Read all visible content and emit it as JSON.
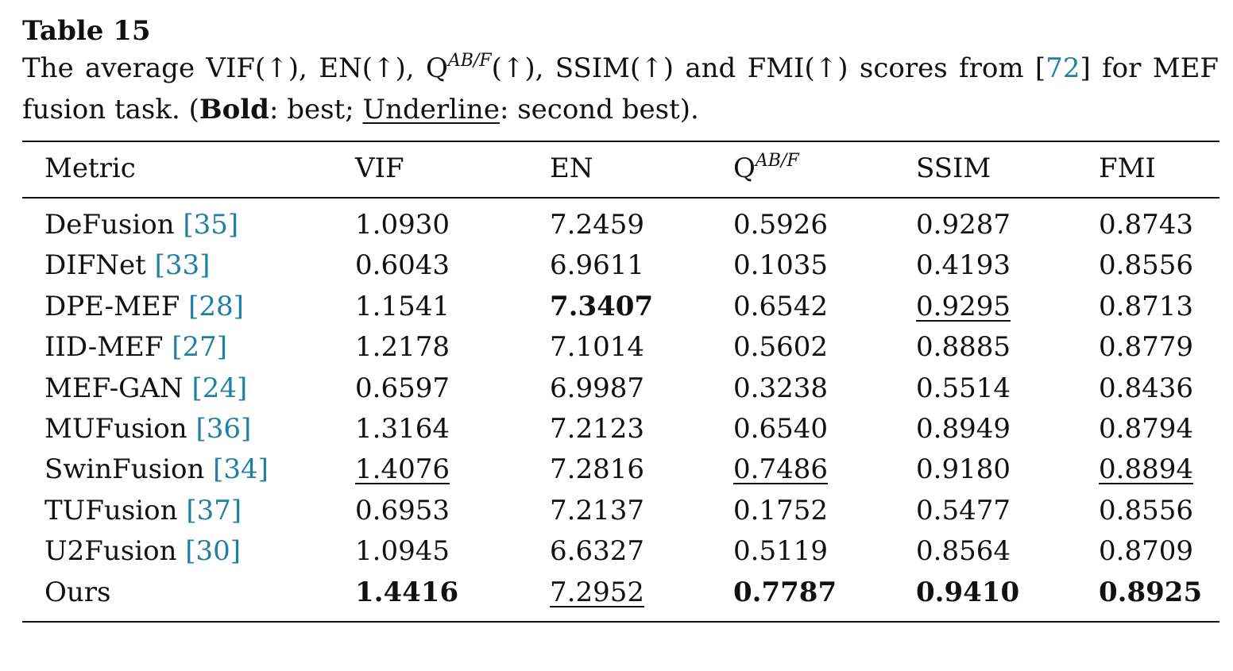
{
  "caption": {
    "label": "Table 15",
    "line1_a": "The average VIF(↑), EN(↑), Q",
    "line1_sup": "AB/F",
    "line1_b": "(↑), SSIM(↑) and FMI(↑) scores from [",
    "line1_ref": "72",
    "line1_c": "] for MEF",
    "line2_a": "fusion task. (",
    "line2_bold": "Bold",
    "line2_b": ": best; ",
    "line2_underline": "Underline",
    "line2_c": ": second best)."
  },
  "table": {
    "headers": {
      "metric": "Metric",
      "vif": "VIF",
      "en": "EN",
      "q_base": "Q",
      "q_sup": "AB/F",
      "ssim": "SSIM",
      "fmi": "FMI"
    },
    "rows": [
      {
        "name": "DeFusion",
        "ref": "[35]",
        "vif": "1.0930",
        "en": "7.2459",
        "q": "0.5926",
        "ssim": "0.9287",
        "fmi": "0.8743"
      },
      {
        "name": "DIFNet",
        "ref": "[33]",
        "vif": "0.6043",
        "en": "6.9611",
        "q": "0.1035",
        "ssim": "0.4193",
        "fmi": "0.8556"
      },
      {
        "name": "DPE-MEF",
        "ref": "[28]",
        "vif": "1.1541",
        "en": "7.3407",
        "q": "0.6542",
        "ssim": "0.9295",
        "fmi": "0.8713"
      },
      {
        "name": "IID-MEF",
        "ref": "[27]",
        "vif": "1.2178",
        "en": "7.1014",
        "q": "0.5602",
        "ssim": "0.8885",
        "fmi": "0.8779"
      },
      {
        "name": "MEF-GAN",
        "ref": "[24]",
        "vif": "0.6597",
        "en": "6.9987",
        "q": "0.3238",
        "ssim": "0.5514",
        "fmi": "0.8436"
      },
      {
        "name": "MUFusion",
        "ref": "[36]",
        "vif": "1.3164",
        "en": "7.2123",
        "q": "0.6540",
        "ssim": "0.8949",
        "fmi": "0.8794"
      },
      {
        "name": "SwinFusion",
        "ref": "[34]",
        "vif": "1.4076",
        "en": "7.2816",
        "q": "0.7486",
        "ssim": "0.9180",
        "fmi": "0.8894"
      },
      {
        "name": "TUFusion",
        "ref": "[37]",
        "vif": "0.6953",
        "en": "7.2137",
        "q": "0.1752",
        "ssim": "0.5477",
        "fmi": "0.8556"
      },
      {
        "name": "U2Fusion",
        "ref": "[30]",
        "vif": "1.0945",
        "en": "6.6327",
        "q": "0.5119",
        "ssim": "0.8564",
        "fmi": "0.8709"
      },
      {
        "name": "Ours",
        "ref": "",
        "vif": "1.4416",
        "en": "7.2952",
        "q": "0.7787",
        "ssim": "0.9410",
        "fmi": "0.8925"
      }
    ]
  },
  "colors": {
    "link": "#1f7fa5",
    "text": "#111111"
  }
}
